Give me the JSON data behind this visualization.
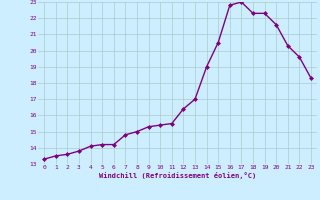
{
  "x": [
    0,
    1,
    2,
    3,
    4,
    5,
    6,
    7,
    8,
    9,
    10,
    11,
    12,
    13,
    14,
    15,
    16,
    17,
    18,
    19,
    20,
    21,
    22,
    23
  ],
  "y": [
    13.3,
    13.5,
    13.6,
    13.8,
    14.1,
    14.2,
    14.2,
    14.8,
    15.0,
    15.3,
    15.4,
    15.5,
    16.4,
    17.0,
    19.0,
    20.5,
    22.8,
    23.0,
    22.3,
    22.3,
    21.6,
    20.3,
    19.6,
    18.3
  ],
  "xlabel": "Windchill (Refroidissement éolien,°C)",
  "xlim": [
    -0.5,
    23.5
  ],
  "ylim": [
    13,
    23
  ],
  "yticks": [
    13,
    14,
    15,
    16,
    17,
    18,
    19,
    20,
    21,
    22,
    23
  ],
  "xticks": [
    0,
    1,
    2,
    3,
    4,
    5,
    6,
    7,
    8,
    9,
    10,
    11,
    12,
    13,
    14,
    15,
    16,
    17,
    18,
    19,
    20,
    21,
    22,
    23
  ],
  "line_color": "#800080",
  "marker": "D",
  "marker_size": 2,
  "bg_color": "#cceeff",
  "grid_color": "#aacccc",
  "tick_color": "#800080",
  "xlabel_color": "#800080",
  "line_width": 1.0
}
